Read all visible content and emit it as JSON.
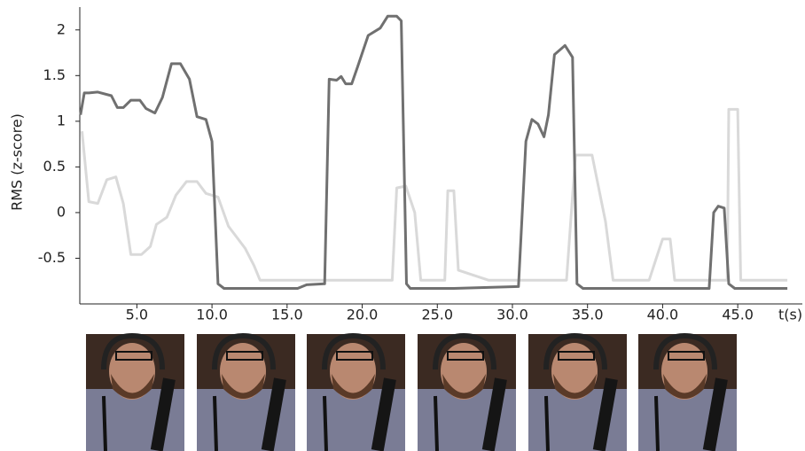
{
  "chart_data": {
    "type": "line",
    "y_label": "RMS (z-score)",
    "x_label": "t(s)",
    "xlim": [
      1.2,
      49.3
    ],
    "ylim": [
      -1.0,
      2.25
    ],
    "xticks": [
      {
        "value": 5,
        "label": "5.0"
      },
      {
        "value": 10,
        "label": "10.0"
      },
      {
        "value": 15,
        "label": "15.0"
      },
      {
        "value": 20,
        "label": "20.0"
      },
      {
        "value": 25,
        "label": "25.0"
      },
      {
        "value": 30,
        "label": "30.0"
      },
      {
        "value": 35,
        "label": "35.0"
      },
      {
        "value": 40,
        "label": "40.0"
      },
      {
        "value": 45,
        "label": "45.0"
      }
    ],
    "yticks": [
      -0.5,
      0,
      0.5,
      1,
      1.5,
      2
    ],
    "series": [
      {
        "color": "#d9d9d9",
        "x": [
          1.35,
          1.8,
          2.4,
          3.0,
          3.6,
          4.1,
          4.6,
          5.3,
          5.9,
          6.3,
          7.0,
          7.6,
          8.3,
          9.0,
          9.6,
          10.4,
          11.1,
          12.2,
          12.8,
          13.2,
          22.0,
          22.3,
          22.9,
          23.5,
          23.9,
          25.5,
          25.7,
          26.1,
          26.4,
          28.4,
          33.6,
          34.2,
          35.3,
          36.2,
          36.7,
          39.1,
          39.6,
          40.0,
          40.5,
          40.8,
          44.3,
          44.4,
          45.0,
          45.2,
          48.3
        ],
        "values": [
          0.89,
          0.12,
          0.1,
          0.36,
          0.39,
          0.1,
          -0.46,
          -0.46,
          -0.37,
          -0.13,
          -0.05,
          0.19,
          0.34,
          0.34,
          0.21,
          0.17,
          -0.15,
          -0.39,
          -0.58,
          -0.74,
          -0.74,
          0.27,
          0.29,
          0.0,
          -0.74,
          -0.74,
          0.24,
          0.24,
          -0.63,
          -0.74,
          -0.74,
          0.63,
          0.63,
          -0.1,
          -0.74,
          -0.74,
          -0.49,
          -0.29,
          -0.29,
          -0.74,
          -0.74,
          1.13,
          1.13,
          -0.74,
          -0.74
        ]
      },
      {
        "color": "#707070",
        "x": [
          1.25,
          1.5,
          1.8,
          2.4,
          3.3,
          3.7,
          4.1,
          4.6,
          5.2,
          5.6,
          6.2,
          6.7,
          7.3,
          7.9,
          8.5,
          9.0,
          9.6,
          10.0,
          10.4,
          10.8,
          15.7,
          16.3,
          17.5,
          17.8,
          18.3,
          18.6,
          18.9,
          19.3,
          19.7,
          20.4,
          21.2,
          21.7,
          22.3,
          22.6,
          22.95,
          23.2,
          26.1,
          30.4,
          30.9,
          31.3,
          31.7,
          32.1,
          32.4,
          32.8,
          33.5,
          34.0,
          34.3,
          34.7,
          43.1,
          43.4,
          43.7,
          44.1,
          44.4,
          44.8,
          48.3
        ],
        "values": [
          1.07,
          1.31,
          1.31,
          1.32,
          1.28,
          1.15,
          1.15,
          1.23,
          1.23,
          1.14,
          1.09,
          1.26,
          1.63,
          1.63,
          1.46,
          1.05,
          1.02,
          0.78,
          -0.78,
          -0.83,
          -0.83,
          -0.79,
          -0.78,
          1.46,
          1.45,
          1.49,
          1.41,
          1.41,
          1.6,
          1.94,
          2.02,
          2.15,
          2.15,
          2.1,
          -0.78,
          -0.83,
          -0.83,
          -0.81,
          0.78,
          1.02,
          0.97,
          0.83,
          1.07,
          1.73,
          1.83,
          1.7,
          -0.78,
          -0.83,
          -0.83,
          0.0,
          0.07,
          0.05,
          -0.78,
          -0.83,
          -0.83
        ]
      }
    ]
  }
}
